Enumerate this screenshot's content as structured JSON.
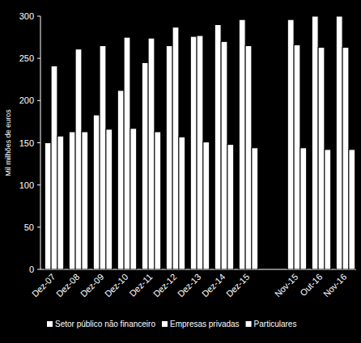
{
  "chart_data": {
    "type": "bar",
    "ylabel": "Mil milhões de euros",
    "categories": [
      "Dez-07",
      "Dez-08",
      "Dez-09",
      "Dez-10",
      "Dez-11",
      "Dez-12",
      "Dez-13",
      "Dez-14",
      "Dez-15",
      null,
      "Nov-15",
      "Out-16",
      "Nov-16"
    ],
    "series": [
      {
        "name": "Setor público não financeiro",
        "color": "#ffffff",
        "values": [
          150,
          163,
          183,
          212,
          245,
          265,
          276,
          290,
          296,
          null,
          296,
          300,
          300
        ]
      },
      {
        "name": "Empresas privadas",
        "color": "#ffffff",
        "values": [
          241,
          261,
          265,
          275,
          274,
          287,
          277,
          270,
          265,
          null,
          266,
          263,
          263
        ]
      },
      {
        "name": "Particulares",
        "color": "#ffffff",
        "values": [
          158,
          163,
          166,
          167,
          163,
          157,
          151,
          148,
          144,
          null,
          144,
          142,
          142
        ]
      }
    ],
    "ylim": [
      0,
      300
    ],
    "yticks": [
      0,
      50,
      100,
      150,
      200,
      250,
      300
    ],
    "grid": false,
    "legend": "bottom"
  }
}
